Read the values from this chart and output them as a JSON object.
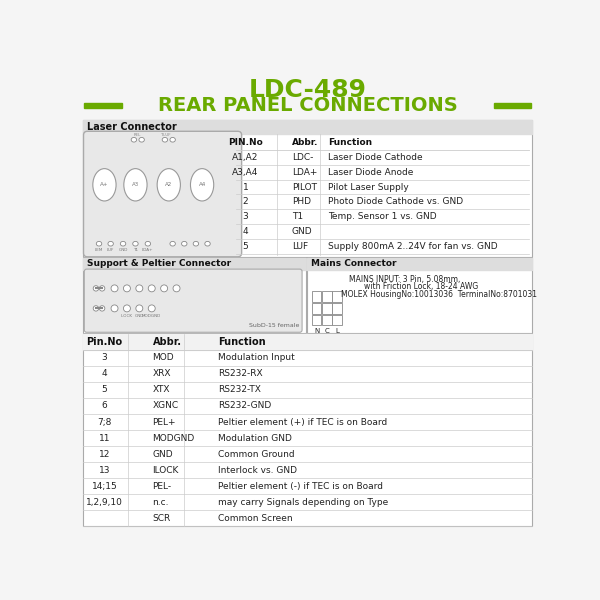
{
  "title_line1": "LDC-489",
  "title_line2": "REAR PANEL CONNECTIONS",
  "title_color": "#6aaa00",
  "bg_color": "#f5f5f5",
  "laser_connector_title": "Laser Connector",
  "support_connector_title": "Support & Peltier Connector",
  "mains_connector_title": "Mains Connector",
  "laser_table_headers": [
    "PIN.No",
    "Abbr.",
    "Function"
  ],
  "laser_table_rows": [
    [
      "A1,A2",
      "LDC-",
      "Laser Diode Cathode"
    ],
    [
      "A3,A4",
      "LDA+",
      "Laser Diode Anode"
    ],
    [
      "1",
      "PILOT",
      "Pilot Laser Supply"
    ],
    [
      "2",
      "PHD",
      "Photo Diode Cathode vs. GND"
    ],
    [
      "3",
      "T1",
      "Temp. Sensor 1 vs. GND"
    ],
    [
      "4",
      "GND",
      ""
    ],
    [
      "5",
      "LUF",
      "Supply 800mA 2..24V for fan vs. GND"
    ]
  ],
  "support_table_headers": [
    "Pin.No",
    "Abbr.",
    "Function"
  ],
  "support_table_rows": [
    [
      "3",
      "MOD",
      "Modulation Input"
    ],
    [
      "4",
      "XRX",
      "RS232-RX"
    ],
    [
      "5",
      "XTX",
      "RS232-TX"
    ],
    [
      "6",
      "XGNC",
      "RS232-GND"
    ],
    [
      "7;8",
      "PEL+",
      "Peltier element (+) if TEC is on Board"
    ],
    [
      "11",
      "MODGND",
      "Modulation GND"
    ],
    [
      "12",
      "GND",
      "Common Ground"
    ],
    [
      "13",
      "ILOCK",
      "Interlock vs. GND"
    ],
    [
      "14;15",
      "PEL-",
      "Peltier element (-) if TEC is on Board"
    ],
    [
      "1,2,9,10",
      "n.c.",
      "may carry Signals depending on Type"
    ],
    [
      "",
      "SCR",
      "Common Screen"
    ]
  ],
  "mains_text1": "MAINS INPUT: 3 Pin, 5.08mm,",
  "mains_text2": "with Friction Lock, 18-24 AWG",
  "mains_text3": "MOLEX HousingNo:10013036  TerminalNo:8701031",
  "subd_label": "SubD-15 female",
  "line_color": "#cccccc",
  "header_text_color": "#111111",
  "body_text_color": "#222222",
  "green_bar_color": "#6aaa00",
  "section_bg": "#eeeeee",
  "section_header_bg": "#dddddd",
  "table_bg": "#ffffff",
  "title_fontsize": 18,
  "subtitle_fontsize": 14
}
